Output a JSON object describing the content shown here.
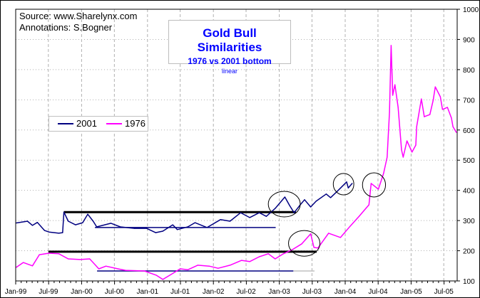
{
  "header": {
    "source": "Source: www.Sharelynx.com",
    "annotations_credit": "Annotations: S.Bogner"
  },
  "chart_data": {
    "type": "line",
    "title": "Gold Bull Similarities",
    "subtitle": "1976 vs 2001 bottom",
    "scale_label": "linear",
    "xlabel": "",
    "ylabel": "",
    "x_tick_labels": [
      "Jan-99",
      "Jul-99",
      "Jan-00",
      "Jul-00",
      "Jan-01",
      "Jul-01",
      "Jan-02",
      "Jul-02",
      "Jan-03",
      "Jul-03",
      "Jan-04",
      "Jul-04",
      "Jan-05",
      "Jul-05"
    ],
    "x_ticks": [
      "1999-01-01",
      "1999-07-01",
      "2000-01-01",
      "2000-07-01",
      "2001-01-01",
      "2001-07-01",
      "2002-01-01",
      "2002-07-01",
      "2003-01-01",
      "2003-07-01",
      "2004-01-01",
      "2004-07-01",
      "2005-01-01",
      "2005-07-01"
    ],
    "xlim": [
      "1999-01-01",
      "2005-09-15"
    ],
    "y_tick_labels": [
      "100",
      "200",
      "300",
      "400",
      "500",
      "600",
      "700",
      "800",
      "900",
      "1000"
    ],
    "ylim": [
      100,
      1000
    ],
    "y_axis_side": "right",
    "grid": true,
    "legend_placement": "middle-left",
    "series": [
      {
        "name": "2001",
        "color": "#000080",
        "points": [
          [
            "1999-01-04",
            292
          ],
          [
            "1999-03-07",
            298
          ],
          [
            "1999-04-04",
            284
          ],
          [
            "1999-05-01",
            294
          ],
          [
            "1999-06-10",
            267
          ],
          [
            "1999-07-04",
            262
          ],
          [
            "1999-08-28",
            258
          ],
          [
            "1999-09-18",
            260
          ],
          [
            "1999-09-25",
            328
          ],
          [
            "1999-10-19",
            298
          ],
          [
            "1999-11-28",
            286
          ],
          [
            "2000-01-07",
            293
          ],
          [
            "2000-02-04",
            321
          ],
          [
            "2000-03-05",
            298
          ],
          [
            "2000-03-25",
            279
          ],
          [
            "2000-06-12",
            291
          ],
          [
            "2000-08-03",
            279
          ],
          [
            "2000-10-21",
            274
          ],
          [
            "2000-12-27",
            274
          ],
          [
            "2001-02-15",
            260
          ],
          [
            "2001-03-27",
            265
          ],
          [
            "2001-05-21",
            286
          ],
          [
            "2001-06-15",
            270
          ],
          [
            "2001-08-12",
            279
          ],
          [
            "2001-09-21",
            293
          ],
          [
            "2001-11-27",
            277
          ],
          [
            "2002-02-09",
            303
          ],
          [
            "2002-04-03",
            298
          ],
          [
            "2002-06-01",
            326
          ],
          [
            "2002-07-21",
            310
          ],
          [
            "2002-09-12",
            326
          ],
          [
            "2002-10-21",
            314
          ],
          [
            "2002-12-09",
            340
          ],
          [
            "2003-02-01",
            378
          ],
          [
            "2003-02-27",
            350
          ],
          [
            "2003-03-24",
            326
          ],
          [
            "2003-04-24",
            350
          ],
          [
            "2003-05-21",
            369
          ],
          [
            "2003-06-24",
            345
          ],
          [
            "2003-07-24",
            364
          ],
          [
            "2003-09-18",
            388
          ],
          [
            "2003-10-12",
            376
          ],
          [
            "2003-11-18",
            397
          ],
          [
            "2004-01-09",
            428
          ],
          [
            "2004-01-18",
            408
          ],
          [
            "2004-02-09",
            423
          ]
        ]
      },
      {
        "name": "1976",
        "color": "#ff00ff",
        "points": [
          [
            "1999-01-04",
            145
          ],
          [
            "1999-02-12",
            161
          ],
          [
            "1999-04-04",
            150
          ],
          [
            "1999-05-12",
            187
          ],
          [
            "1999-07-04",
            192
          ],
          [
            "1999-08-28",
            190
          ],
          [
            "1999-10-19",
            173
          ],
          [
            "1999-12-24",
            171
          ],
          [
            "2000-02-15",
            173
          ],
          [
            "2000-04-06",
            140
          ],
          [
            "2000-05-15",
            149
          ],
          [
            "2000-07-21",
            140
          ],
          [
            "2000-09-01",
            135
          ],
          [
            "2000-12-15",
            133
          ],
          [
            "2001-02-18",
            119
          ],
          [
            "2001-03-27",
            105
          ],
          [
            "2001-05-24",
            126
          ],
          [
            "2001-07-01",
            140
          ],
          [
            "2001-08-12",
            137
          ],
          [
            "2001-10-06",
            152
          ],
          [
            "2001-12-09",
            149
          ],
          [
            "2002-01-27",
            142
          ],
          [
            "2002-04-03",
            152
          ],
          [
            "2002-06-06",
            168
          ],
          [
            "2002-07-21",
            164
          ],
          [
            "2002-09-12",
            180
          ],
          [
            "2002-11-01",
            190
          ],
          [
            "2002-12-09",
            173
          ],
          [
            "2003-01-24",
            190
          ],
          [
            "2003-03-15",
            204
          ],
          [
            "2003-05-06",
            223
          ],
          [
            "2003-06-24",
            256
          ],
          [
            "2003-07-12",
            211
          ],
          [
            "2003-08-03",
            209
          ],
          [
            "2003-10-01",
            258
          ],
          [
            "2003-12-06",
            244
          ],
          [
            "2004-01-28",
            281
          ],
          [
            "2004-03-18",
            314
          ],
          [
            "2004-05-12",
            352
          ],
          [
            "2004-05-24",
            423
          ],
          [
            "2004-07-03",
            404
          ],
          [
            "2004-08-01",
            456
          ],
          [
            "2004-08-21",
            510
          ],
          [
            "2004-09-03",
            659
          ],
          [
            "2004-09-12",
            880
          ],
          [
            "2004-09-21",
            715
          ],
          [
            "2004-10-03",
            750
          ],
          [
            "2004-10-21",
            675
          ],
          [
            "2004-11-09",
            534
          ],
          [
            "2004-11-18",
            510
          ],
          [
            "2004-12-09",
            564
          ],
          [
            "2005-01-06",
            527
          ],
          [
            "2005-01-27",
            550
          ],
          [
            "2005-02-01",
            611
          ],
          [
            "2005-02-27",
            703
          ],
          [
            "2005-03-15",
            644
          ],
          [
            "2005-04-15",
            651
          ],
          [
            "2005-05-03",
            698
          ],
          [
            "2005-05-15",
            743
          ],
          [
            "2005-06-12",
            710
          ],
          [
            "2005-06-24",
            668
          ],
          [
            "2005-07-21",
            675
          ],
          [
            "2005-08-12",
            640
          ],
          [
            "2005-08-21",
            611
          ],
          [
            "2005-09-09",
            592
          ]
        ]
      }
    ],
    "annotations": {
      "lines": [
        {
          "color": "#000000",
          "weight": "thick",
          "value": 328,
          "from": "1999-09-25",
          "to": "2003-04-03"
        },
        {
          "color": "#000000",
          "weight": "thick",
          "value": 197,
          "from": "1999-07-01",
          "to": "2003-07-27"
        },
        {
          "color": "#000080",
          "weight": "thin",
          "value": 277,
          "from": "2000-03-15",
          "to": "2002-12-12"
        },
        {
          "color": "#000080",
          "weight": "thin",
          "value": 133,
          "from": "2000-03-27",
          "to": "2003-03-20"
        },
        {
          "color": "#c0c0c0",
          "weight": "thin",
          "value": 133,
          "from": "2003-03-20",
          "to": "2003-07-15"
        }
      ],
      "ellipses": [
        {
          "from": "2002-11-01",
          "to": "2003-04-27",
          "vmin": 312,
          "vmax": 397
        },
        {
          "from": "2003-02-21",
          "to": "2003-08-14",
          "vmin": 182,
          "vmax": 267
        },
        {
          "from": "2003-10-27",
          "to": "2004-02-18",
          "vmin": 385,
          "vmax": 456
        },
        {
          "from": "2004-04-06",
          "to": "2004-08-12",
          "vmin": 378,
          "vmax": 458
        }
      ]
    }
  }
}
